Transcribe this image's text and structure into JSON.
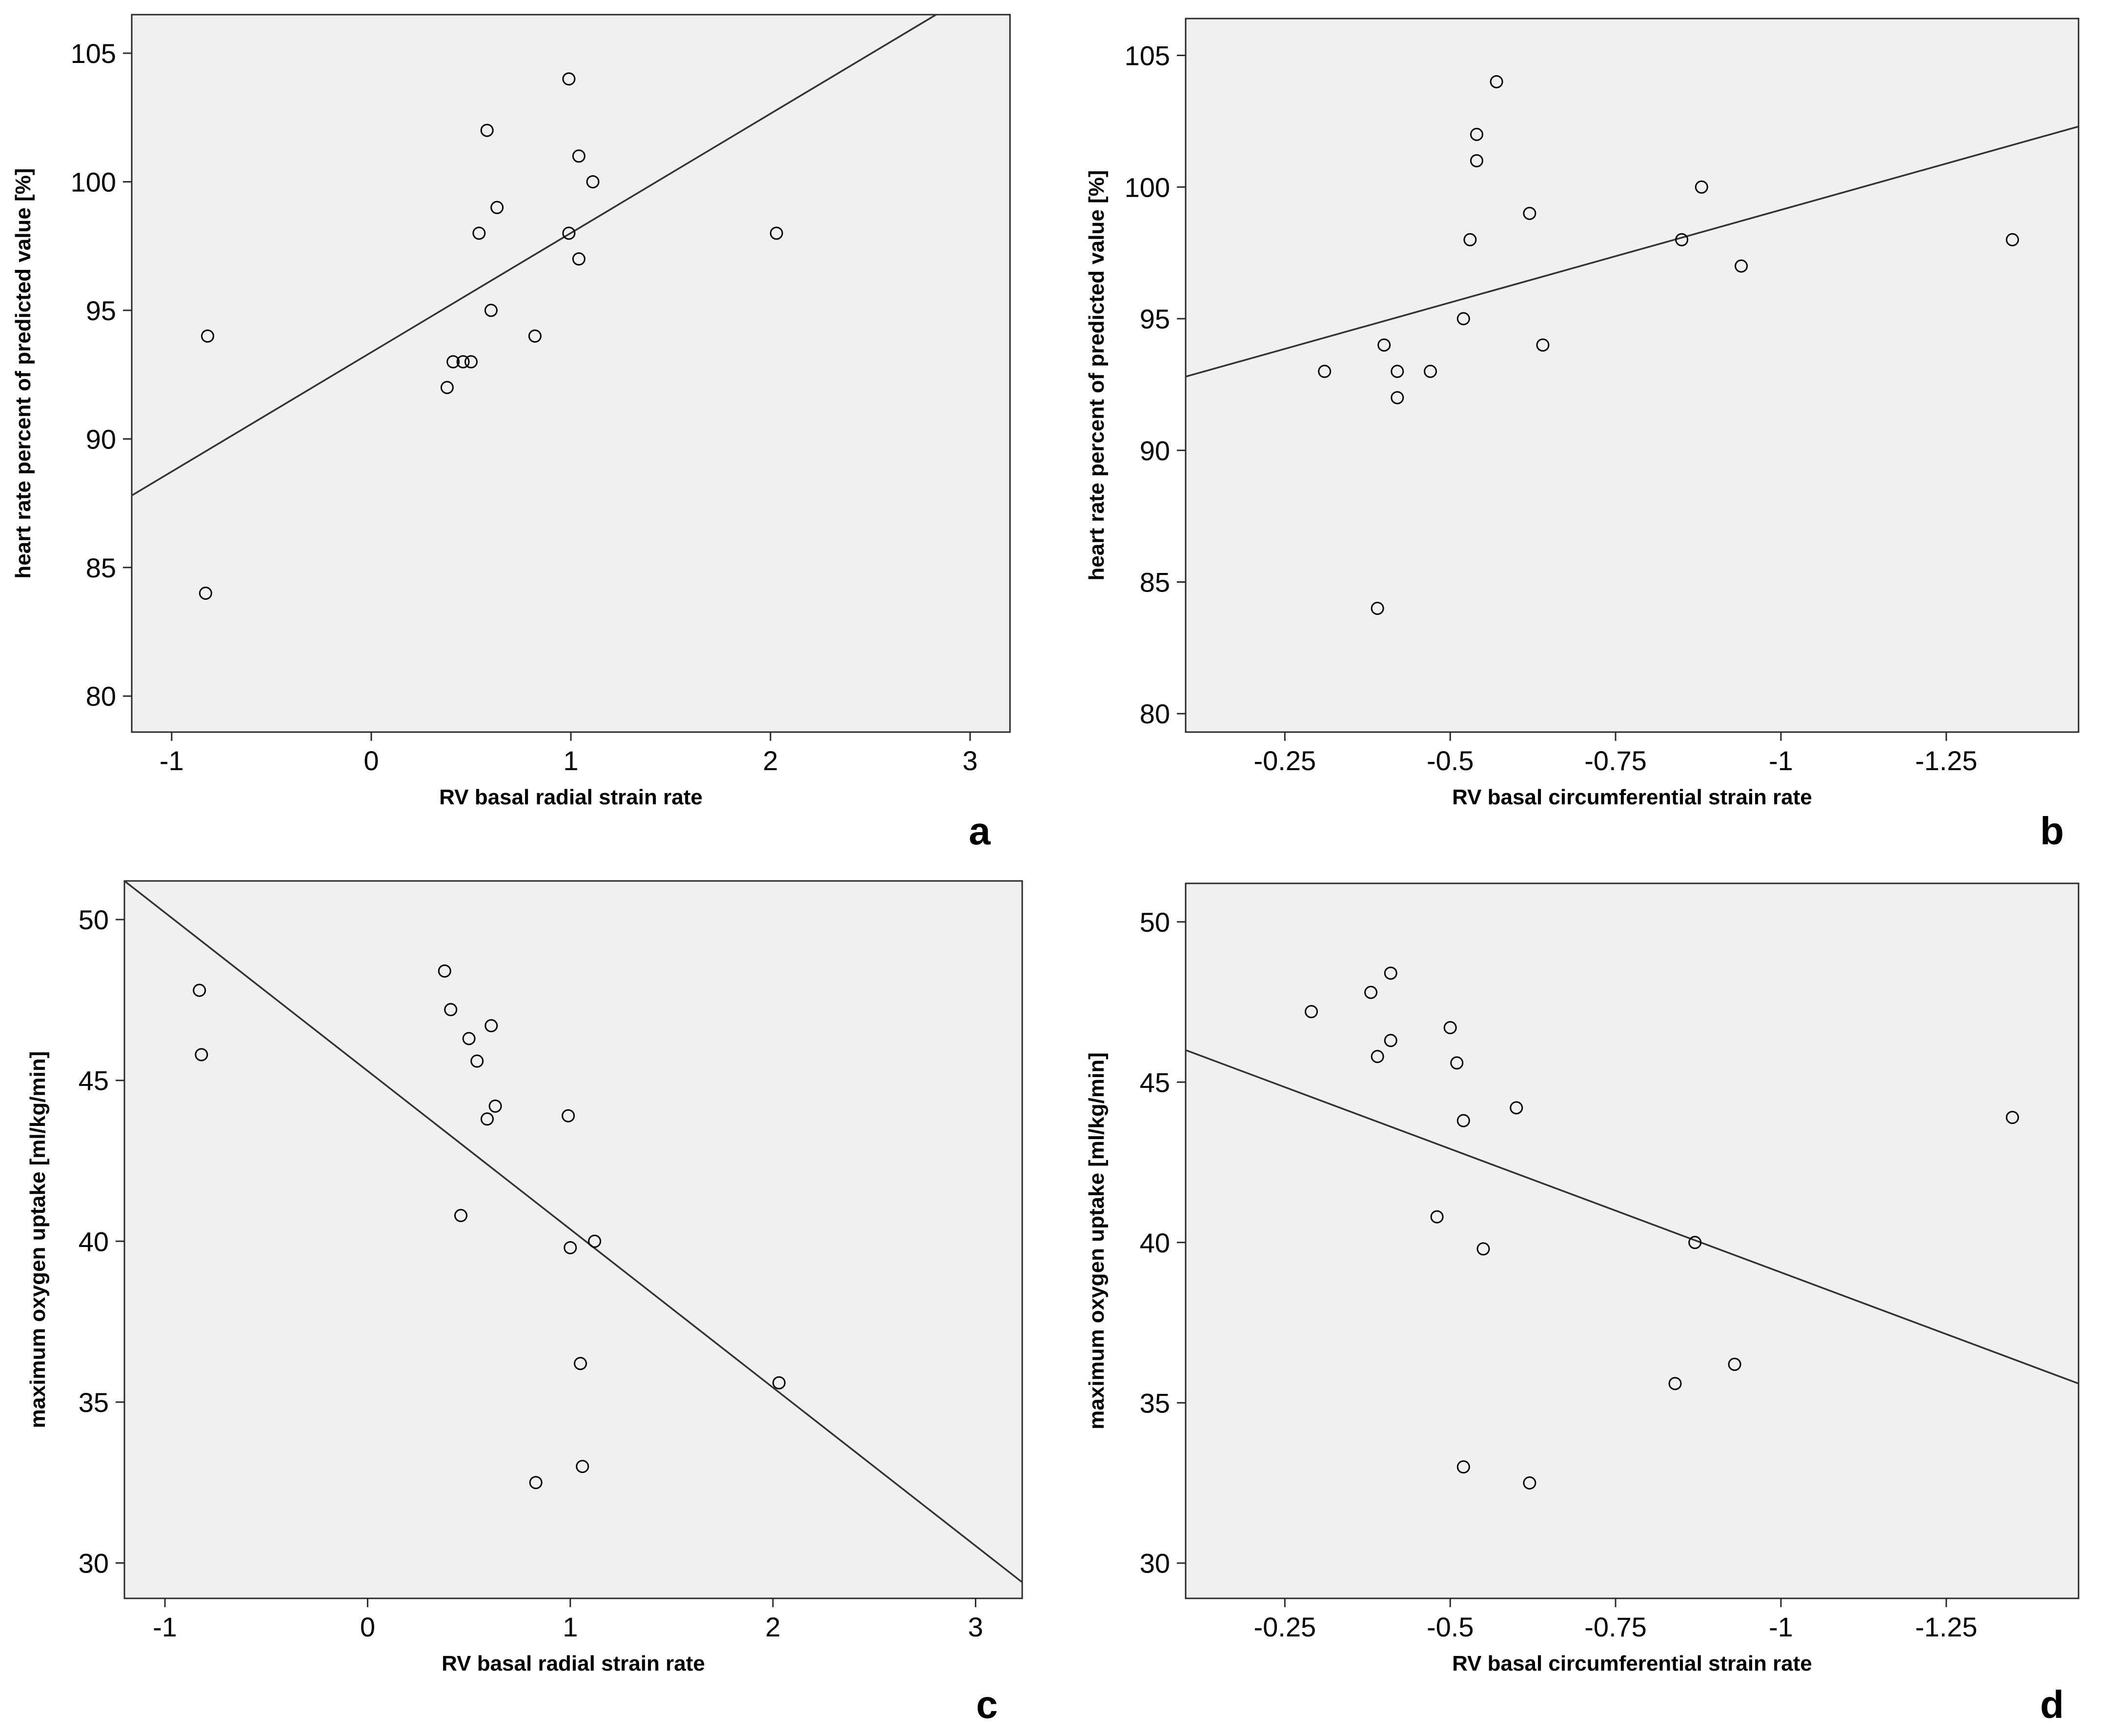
{
  "chart_data": [
    {
      "type": "scatter",
      "panel_label": "a",
      "title": "",
      "xlabel": "RV basal radial strain rate",
      "ylabel": "heart rate percent of predicted value [%]",
      "xlim": [
        -1.2,
        3.2
      ],
      "ylim": [
        78.6,
        106.5
      ],
      "xticks": [
        -1,
        0,
        1,
        2,
        3
      ],
      "xtick_labels": [
        "-1",
        "0",
        "1",
        "2",
        "3"
      ],
      "yticks": [
        80,
        85,
        90,
        95,
        100,
        105
      ],
      "ytick_labels": [
        "80",
        "85",
        "90",
        "95",
        "100",
        "105"
      ],
      "points": [
        {
          "x": -0.82,
          "y": 94
        },
        {
          "x": -0.83,
          "y": 84
        },
        {
          "x": 0.38,
          "y": 92
        },
        {
          "x": 0.41,
          "y": 93
        },
        {
          "x": 0.46,
          "y": 93
        },
        {
          "x": 0.5,
          "y": 93
        },
        {
          "x": 0.54,
          "y": 98
        },
        {
          "x": 0.58,
          "y": 102
        },
        {
          "x": 0.6,
          "y": 95
        },
        {
          "x": 0.63,
          "y": 99
        },
        {
          "x": 0.82,
          "y": 94
        },
        {
          "x": 0.99,
          "y": 104
        },
        {
          "x": 0.99,
          "y": 98
        },
        {
          "x": 1.04,
          "y": 101
        },
        {
          "x": 1.04,
          "y": 97
        },
        {
          "x": 1.11,
          "y": 100
        },
        {
          "x": 2.03,
          "y": 98
        }
      ],
      "fit_line": {
        "x": [
          -1.2,
          2.83
        ],
        "y": [
          87.8,
          106.5
        ]
      }
    },
    {
      "type": "scatter",
      "panel_label": "b",
      "title": "",
      "xlabel": "RV basal circumferential strain rate",
      "ylabel": "heart rate percent of predicted value [%]",
      "xlim": [
        -0.1,
        -1.45
      ],
      "ylim": [
        79.3,
        106.4
      ],
      "xticks": [
        -0.25,
        -0.5,
        -0.75,
        -1,
        -1.25
      ],
      "xtick_labels": [
        "-0.25",
        "-0.5",
        "-0.75",
        "-1",
        "-1.25"
      ],
      "yticks": [
        80,
        85,
        90,
        95,
        100,
        105
      ],
      "ytick_labels": [
        "80",
        "85",
        "90",
        "95",
        "100",
        "105"
      ],
      "points": [
        {
          "x": -0.31,
          "y": 93
        },
        {
          "x": -0.39,
          "y": 84
        },
        {
          "x": -0.4,
          "y": 94
        },
        {
          "x": -0.42,
          "y": 93
        },
        {
          "x": -0.42,
          "y": 92
        },
        {
          "x": -0.47,
          "y": 93
        },
        {
          "x": -0.52,
          "y": 95
        },
        {
          "x": -0.53,
          "y": 98
        },
        {
          "x": -0.54,
          "y": 102
        },
        {
          "x": -0.54,
          "y": 101
        },
        {
          "x": -0.57,
          "y": 104
        },
        {
          "x": -0.62,
          "y": 99
        },
        {
          "x": -0.64,
          "y": 94
        },
        {
          "x": -0.85,
          "y": 98
        },
        {
          "x": -0.88,
          "y": 100
        },
        {
          "x": -0.94,
          "y": 97
        },
        {
          "x": -1.35,
          "y": 98
        }
      ],
      "fit_line": {
        "x": [
          -0.1,
          -1.45
        ],
        "y": [
          92.8,
          102.3
        ]
      }
    },
    {
      "type": "scatter",
      "panel_label": "c",
      "title": "",
      "xlabel": "RV basal radial strain rate",
      "ylabel": "maximum oxygen uptake [ml/kg/min]",
      "xlim": [
        -1.2,
        3.23
      ],
      "ylim": [
        28.9,
        51.2
      ],
      "xticks": [
        -1,
        0,
        1,
        2,
        3
      ],
      "xtick_labels": [
        "-1",
        "0",
        "1",
        "2",
        "3"
      ],
      "yticks": [
        30,
        35,
        40,
        45,
        50
      ],
      "ytick_labels": [
        "30",
        "35",
        "40",
        "45",
        "50"
      ],
      "points": [
        {
          "x": -0.83,
          "y": 47.8
        },
        {
          "x": -0.82,
          "y": 45.8
        },
        {
          "x": 0.38,
          "y": 48.4
        },
        {
          "x": 0.41,
          "y": 47.2
        },
        {
          "x": 0.46,
          "y": 40.8
        },
        {
          "x": 0.5,
          "y": 46.3
        },
        {
          "x": 0.54,
          "y": 45.6
        },
        {
          "x": 0.59,
          "y": 43.8
        },
        {
          "x": 0.61,
          "y": 46.7
        },
        {
          "x": 0.63,
          "y": 44.2
        },
        {
          "x": 0.83,
          "y": 32.5
        },
        {
          "x": 0.99,
          "y": 43.9
        },
        {
          "x": 1.0,
          "y": 39.8
        },
        {
          "x": 1.05,
          "y": 36.2
        },
        {
          "x": 1.06,
          "y": 33.0
        },
        {
          "x": 1.12,
          "y": 40.0
        },
        {
          "x": 2.03,
          "y": 35.6
        }
      ],
      "fit_line": {
        "x": [
          -1.2,
          3.23
        ],
        "y": [
          51.2,
          29.4
        ]
      }
    },
    {
      "type": "scatter",
      "panel_label": "d",
      "title": "",
      "xlabel": "RV basal circumferential strain rate",
      "ylabel": "maximum oxygen uptake [ml/kg/min]",
      "xlim": [
        -0.1,
        -1.45
      ],
      "ylim": [
        28.9,
        51.2
      ],
      "xticks": [
        -0.25,
        -0.5,
        -0.75,
        -1,
        -1.25
      ],
      "xtick_labels": [
        "-0.25",
        "-0.5",
        "-0.75",
        "-1",
        "-1.25"
      ],
      "yticks": [
        30,
        35,
        40,
        45,
        50
      ],
      "ytick_labels": [
        "30",
        "35",
        "40",
        "45",
        "50"
      ],
      "points": [
        {
          "x": -0.29,
          "y": 47.2
        },
        {
          "x": -0.38,
          "y": 47.8
        },
        {
          "x": -0.39,
          "y": 45.8
        },
        {
          "x": -0.41,
          "y": 48.4
        },
        {
          "x": -0.41,
          "y": 46.3
        },
        {
          "x": -0.48,
          "y": 40.8
        },
        {
          "x": -0.5,
          "y": 46.7
        },
        {
          "x": -0.51,
          "y": 45.6
        },
        {
          "x": -0.52,
          "y": 43.8
        },
        {
          "x": -0.52,
          "y": 33.0
        },
        {
          "x": -0.55,
          "y": 39.8
        },
        {
          "x": -0.6,
          "y": 44.2
        },
        {
          "x": -0.62,
          "y": 32.5
        },
        {
          "x": -0.84,
          "y": 35.6
        },
        {
          "x": -0.87,
          "y": 40.0
        },
        {
          "x": -0.93,
          "y": 36.2
        },
        {
          "x": -1.35,
          "y": 43.9
        }
      ],
      "fit_line": {
        "x": [
          -0.1,
          -1.45
        ],
        "y": [
          46.0,
          35.6
        ]
      }
    }
  ]
}
